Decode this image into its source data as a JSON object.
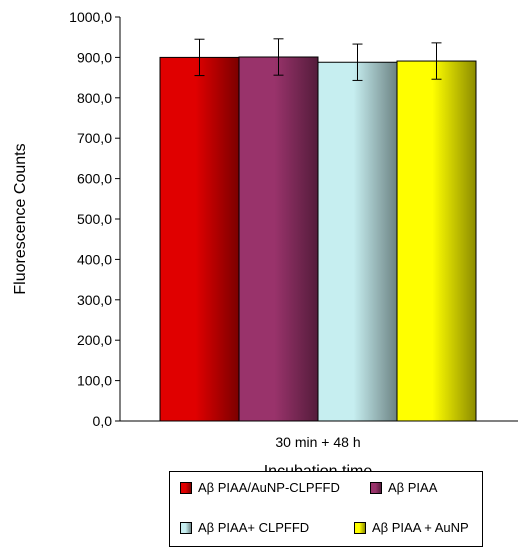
{
  "chart_data": {
    "type": "bar",
    "categories": [
      "30 min + 48 h"
    ],
    "series": [
      {
        "name": "Aβ PIAA/AuNP-CLPFFD",
        "values": [
          900
        ],
        "error": [
          45
        ],
        "color": "#e00000"
      },
      {
        "name": "Aβ PIAA",
        "values": [
          901
        ],
        "error": [
          45
        ],
        "color": "#99336b"
      },
      {
        "name": "Aβ PIAA+ CLPFFD",
        "values": [
          888
        ],
        "error": [
          45
        ],
        "color": "#c6eef0"
      },
      {
        "name": "Aβ PIAA + AuNP",
        "values": [
          891
        ],
        "error": [
          45
        ],
        "color": "#ffff00"
      }
    ],
    "xlabel": "Incubation time",
    "ylabel": "Fluorescence Counts",
    "ylim": [
      0,
      1000
    ],
    "yticks": [
      "0,0",
      "100,0",
      "200,0",
      "300,0",
      "400,0",
      "500,0",
      "600,0",
      "700,0",
      "800,0",
      "900,0",
      "1000,0"
    ],
    "grid": false,
    "legend_position": "bottom"
  }
}
